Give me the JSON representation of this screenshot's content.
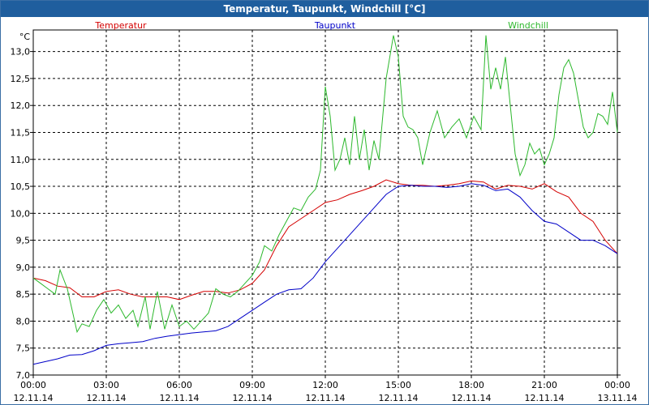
{
  "window": {
    "title": "Temperatur, Taupunkt, Windchill [°C]"
  },
  "chart_data": {
    "type": "line",
    "ylabel": "°C",
    "ylim": [
      7.0,
      13.4
    ],
    "yticks": [
      "7,0",
      "7,5",
      "8,0",
      "8,5",
      "9,0",
      "9,5",
      "10,0",
      "10,5",
      "11,0",
      "11,5",
      "12,0",
      "12,5",
      "13,0"
    ],
    "xlim": [
      0,
      24
    ],
    "xticks": [
      {
        "time": "00:00",
        "date": "12.11.14"
      },
      {
        "time": "03:00",
        "date": "12.11.14"
      },
      {
        "time": "06:00",
        "date": "12.11.14"
      },
      {
        "time": "09:00",
        "date": "12.11.14"
      },
      {
        "time": "12:00",
        "date": "12.11.14"
      },
      {
        "time": "15:00",
        "date": "12.11.14"
      },
      {
        "time": "18:00",
        "date": "12.11.14"
      },
      {
        "time": "21:00",
        "date": "12.11.14"
      },
      {
        "time": "00:00",
        "date": "13.11.14"
      }
    ],
    "grid": true,
    "legend_position": "top",
    "series": [
      {
        "name": "Temperatur",
        "color": "#d40000",
        "points": [
          [
            0,
            8.8
          ],
          [
            0.5,
            8.75
          ],
          [
            1,
            8.65
          ],
          [
            1.5,
            8.62
          ],
          [
            2,
            8.45
          ],
          [
            2.5,
            8.45
          ],
          [
            3,
            8.55
          ],
          [
            3.5,
            8.58
          ],
          [
            4,
            8.5
          ],
          [
            4.5,
            8.45
          ],
          [
            5,
            8.45
          ],
          [
            5.5,
            8.45
          ],
          [
            6,
            8.4
          ],
          [
            6.5,
            8.48
          ],
          [
            7,
            8.55
          ],
          [
            7.5,
            8.55
          ],
          [
            8,
            8.52
          ],
          [
            8.5,
            8.58
          ],
          [
            9,
            8.7
          ],
          [
            9.5,
            8.95
          ],
          [
            10,
            9.4
          ],
          [
            10.5,
            9.75
          ],
          [
            11,
            9.9
          ],
          [
            11.5,
            10.05
          ],
          [
            12,
            10.2
          ],
          [
            12.5,
            10.25
          ],
          [
            13,
            10.35
          ],
          [
            13.5,
            10.42
          ],
          [
            14,
            10.5
          ],
          [
            14.5,
            10.62
          ],
          [
            15,
            10.55
          ],
          [
            15.5,
            10.52
          ],
          [
            16,
            10.52
          ],
          [
            16.5,
            10.5
          ],
          [
            17,
            10.52
          ],
          [
            17.5,
            10.55
          ],
          [
            18,
            10.6
          ],
          [
            18.5,
            10.58
          ],
          [
            19,
            10.45
          ],
          [
            19.5,
            10.52
          ],
          [
            20,
            10.5
          ],
          [
            20.5,
            10.45
          ],
          [
            21,
            10.55
          ],
          [
            21.5,
            10.4
          ],
          [
            22,
            10.3
          ],
          [
            22.5,
            10.0
          ],
          [
            23,
            9.85
          ],
          [
            23.5,
            9.5
          ],
          [
            24,
            9.25
          ]
        ]
      },
      {
        "name": "Taupunkt",
        "color": "#0000c8",
        "points": [
          [
            0,
            7.2
          ],
          [
            0.5,
            7.25
          ],
          [
            1,
            7.3
          ],
          [
            1.5,
            7.37
          ],
          [
            2,
            7.38
          ],
          [
            2.5,
            7.45
          ],
          [
            3,
            7.55
          ],
          [
            3.5,
            7.58
          ],
          [
            4,
            7.6
          ],
          [
            4.5,
            7.62
          ],
          [
            5,
            7.68
          ],
          [
            5.5,
            7.72
          ],
          [
            6,
            7.75
          ],
          [
            6.5,
            7.78
          ],
          [
            7,
            7.8
          ],
          [
            7.5,
            7.82
          ],
          [
            8,
            7.9
          ],
          [
            8.5,
            8.05
          ],
          [
            9,
            8.2
          ],
          [
            9.5,
            8.35
          ],
          [
            10,
            8.5
          ],
          [
            10.5,
            8.58
          ],
          [
            11,
            8.6
          ],
          [
            11.5,
            8.8
          ],
          [
            12,
            9.1
          ],
          [
            12.5,
            9.35
          ],
          [
            13,
            9.6
          ],
          [
            13.5,
            9.85
          ],
          [
            14,
            10.1
          ],
          [
            14.5,
            10.35
          ],
          [
            15,
            10.5
          ],
          [
            15.5,
            10.52
          ],
          [
            16,
            10.5
          ],
          [
            16.5,
            10.5
          ],
          [
            17,
            10.48
          ],
          [
            17.5,
            10.5
          ],
          [
            18,
            10.55
          ],
          [
            18.5,
            10.52
          ],
          [
            19,
            10.42
          ],
          [
            19.5,
            10.45
          ],
          [
            20,
            10.3
          ],
          [
            20.5,
            10.05
          ],
          [
            21,
            9.85
          ],
          [
            21.5,
            9.8
          ],
          [
            22,
            9.65
          ],
          [
            22.5,
            9.5
          ],
          [
            23,
            9.5
          ],
          [
            23.5,
            9.4
          ],
          [
            24,
            9.25
          ]
        ]
      },
      {
        "name": "Windchill",
        "color": "#2cb82c",
        "points": [
          [
            0,
            8.8
          ],
          [
            0.3,
            8.7
          ],
          [
            0.6,
            8.6
          ],
          [
            0.9,
            8.5
          ],
          [
            1.1,
            8.95
          ],
          [
            1.4,
            8.6
          ],
          [
            1.8,
            7.8
          ],
          [
            2,
            7.95
          ],
          [
            2.3,
            7.9
          ],
          [
            2.6,
            8.2
          ],
          [
            2.9,
            8.4
          ],
          [
            3.2,
            8.15
          ],
          [
            3.5,
            8.3
          ],
          [
            3.8,
            8.05
          ],
          [
            4.1,
            8.2
          ],
          [
            4.3,
            7.9
          ],
          [
            4.6,
            8.45
          ],
          [
            4.8,
            7.85
          ],
          [
            5.1,
            8.55
          ],
          [
            5.4,
            7.85
          ],
          [
            5.7,
            8.3
          ],
          [
            6,
            7.9
          ],
          [
            6.3,
            8.0
          ],
          [
            6.6,
            7.85
          ],
          [
            6.9,
            8.0
          ],
          [
            7.2,
            8.15
          ],
          [
            7.5,
            8.6
          ],
          [
            7.8,
            8.5
          ],
          [
            8.1,
            8.45
          ],
          [
            8.4,
            8.55
          ],
          [
            8.7,
            8.7
          ],
          [
            9,
            8.85
          ],
          [
            9.3,
            9.1
          ],
          [
            9.5,
            9.4
          ],
          [
            9.8,
            9.3
          ],
          [
            10.1,
            9.6
          ],
          [
            10.4,
            9.85
          ],
          [
            10.7,
            10.1
          ],
          [
            11,
            10.05
          ],
          [
            11.3,
            10.3
          ],
          [
            11.6,
            10.45
          ],
          [
            11.8,
            10.8
          ],
          [
            12,
            12.35
          ],
          [
            12.2,
            11.8
          ],
          [
            12.4,
            10.8
          ],
          [
            12.6,
            11.0
          ],
          [
            12.8,
            11.4
          ],
          [
            13,
            10.9
          ],
          [
            13.2,
            11.8
          ],
          [
            13.4,
            11.0
          ],
          [
            13.6,
            11.55
          ],
          [
            13.8,
            10.8
          ],
          [
            14,
            11.35
          ],
          [
            14.2,
            11.0
          ],
          [
            14.5,
            12.5
          ],
          [
            14.8,
            13.3
          ],
          [
            15,
            12.9
          ],
          [
            15.2,
            11.8
          ],
          [
            15.4,
            11.6
          ],
          [
            15.6,
            11.55
          ],
          [
            15.8,
            11.4
          ],
          [
            16,
            10.9
          ],
          [
            16.3,
            11.5
          ],
          [
            16.6,
            11.9
          ],
          [
            16.9,
            11.4
          ],
          [
            17.2,
            11.6
          ],
          [
            17.5,
            11.75
          ],
          [
            17.8,
            11.4
          ],
          [
            18.1,
            11.8
          ],
          [
            18.4,
            11.55
          ],
          [
            18.6,
            13.3
          ],
          [
            18.8,
            12.3
          ],
          [
            19,
            12.7
          ],
          [
            19.2,
            12.3
          ],
          [
            19.4,
            12.9
          ],
          [
            19.6,
            12.0
          ],
          [
            19.8,
            11.1
          ],
          [
            20,
            10.7
          ],
          [
            20.2,
            10.9
          ],
          [
            20.4,
            11.3
          ],
          [
            20.6,
            11.1
          ],
          [
            20.8,
            11.2
          ],
          [
            21,
            10.9
          ],
          [
            21.2,
            11.1
          ],
          [
            21.4,
            11.4
          ],
          [
            21.6,
            12.2
          ],
          [
            21.8,
            12.7
          ],
          [
            22,
            12.85
          ],
          [
            22.2,
            12.6
          ],
          [
            22.4,
            12.1
          ],
          [
            22.6,
            11.6
          ],
          [
            22.8,
            11.4
          ],
          [
            23,
            11.5
          ],
          [
            23.2,
            11.85
          ],
          [
            23.4,
            11.8
          ],
          [
            23.6,
            11.65
          ],
          [
            23.8,
            12.25
          ],
          [
            24,
            11.5
          ]
        ]
      }
    ]
  }
}
